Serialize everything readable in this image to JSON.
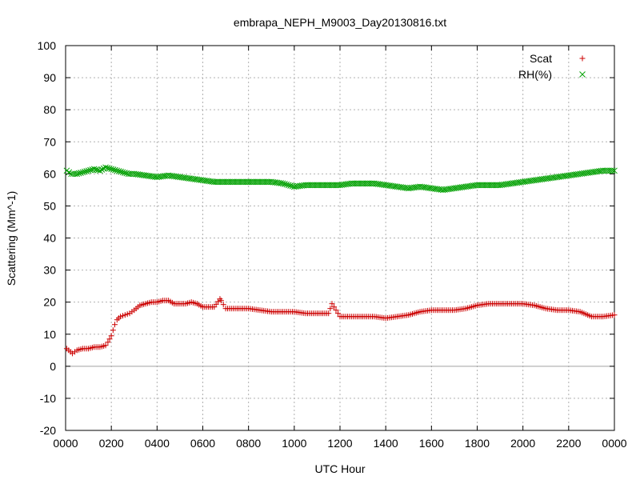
{
  "chart_data": {
    "type": "scatter",
    "title": "embrapa_NEPH_M9003_Day20130816.txt",
    "xlabel": "UTC Hour",
    "ylabel": "Scattering (Mm^-1)",
    "xlim": [
      0,
      24
    ],
    "ylim": [
      -20,
      100
    ],
    "grid": true,
    "legend_position": "top-right",
    "x_ticks": [
      {
        "value": 0,
        "label": "0000"
      },
      {
        "value": 2,
        "label": "0200"
      },
      {
        "value": 4,
        "label": "0400"
      },
      {
        "value": 6,
        "label": "0600"
      },
      {
        "value": 8,
        "label": "0800"
      },
      {
        "value": 10,
        "label": "1000"
      },
      {
        "value": 12,
        "label": "1200"
      },
      {
        "value": 14,
        "label": "1400"
      },
      {
        "value": 16,
        "label": "1600"
      },
      {
        "value": 18,
        "label": "1800"
      },
      {
        "value": 20,
        "label": "2000"
      },
      {
        "value": 22,
        "label": "2200"
      },
      {
        "value": 24,
        "label": "0000"
      }
    ],
    "y_ticks": [
      -20,
      -10,
      0,
      10,
      20,
      30,
      40,
      50,
      60,
      70,
      80,
      90,
      100
    ],
    "series": [
      {
        "name": "Scat",
        "marker": "plus",
        "color": "#cc0000",
        "x": [
          0.05,
          0.3,
          0.5,
          0.75,
          1.0,
          1.25,
          1.5,
          1.75,
          1.85,
          2.0,
          2.15,
          2.25,
          2.4,
          2.6,
          2.8,
          3.0,
          3.25,
          3.5,
          3.75,
          4.0,
          4.25,
          4.5,
          4.75,
          5.0,
          5.25,
          5.5,
          5.75,
          6.0,
          6.25,
          6.5,
          6.75,
          6.8,
          7.0,
          7.5,
          8.0,
          8.5,
          9.0,
          9.5,
          10.0,
          10.5,
          11.0,
          11.5,
          11.65,
          12.0,
          12.5,
          13.0,
          13.5,
          14.0,
          14.5,
          15.0,
          15.5,
          16.0,
          16.5,
          17.0,
          17.5,
          18.0,
          18.5,
          19.0,
          19.5,
          20.0,
          20.5,
          21.0,
          21.5,
          22.0,
          22.5,
          23.0,
          23.5,
          24.0
        ],
        "y": [
          5.5,
          4.0,
          5.0,
          5.5,
          5.5,
          6.0,
          6.0,
          6.5,
          7.5,
          9.5,
          13.0,
          14.5,
          15.5,
          16.0,
          16.5,
          17.5,
          19.0,
          19.5,
          20.0,
          20.0,
          20.5,
          20.5,
          19.5,
          19.5,
          19.5,
          20.0,
          19.5,
          18.5,
          18.5,
          18.5,
          21.0,
          20.5,
          18.0,
          18.0,
          18.0,
          17.5,
          17.0,
          17.0,
          17.0,
          16.5,
          16.5,
          16.5,
          19.5,
          15.5,
          15.5,
          15.5,
          15.5,
          15.0,
          15.5,
          16.0,
          17.0,
          17.5,
          17.5,
          17.5,
          18.0,
          19.0,
          19.5,
          19.5,
          19.5,
          19.5,
          19.0,
          18.0,
          17.5,
          17.5,
          17.0,
          15.5,
          15.5,
          16.0
        ]
      },
      {
        "name": "RH(%)",
        "marker": "cross",
        "color": "#00a000",
        "x": [
          0.05,
          0.25,
          0.5,
          0.75,
          1.0,
          1.25,
          1.5,
          1.75,
          2.0,
          2.25,
          2.5,
          2.75,
          3.0,
          3.5,
          4.0,
          4.5,
          5.0,
          5.5,
          6.0,
          6.5,
          7.0,
          7.5,
          8.0,
          8.5,
          9.0,
          9.5,
          10.0,
          10.5,
          11.0,
          11.5,
          12.0,
          12.5,
          13.0,
          13.5,
          14.0,
          14.5,
          15.0,
          15.5,
          16.0,
          16.5,
          17.0,
          17.5,
          18.0,
          18.5,
          19.0,
          19.5,
          20.0,
          20.5,
          21.0,
          21.5,
          22.0,
          22.5,
          23.0,
          23.5,
          24.0
        ],
        "y": [
          61.0,
          60.0,
          60.0,
          60.5,
          61.0,
          61.5,
          61.0,
          62.0,
          61.5,
          61.0,
          60.5,
          60.0,
          60.0,
          59.5,
          59.0,
          59.5,
          59.0,
          58.5,
          58.0,
          57.5,
          57.5,
          57.5,
          57.5,
          57.5,
          57.5,
          57.0,
          56.0,
          56.5,
          56.5,
          56.5,
          56.5,
          57.0,
          57.0,
          57.0,
          56.5,
          56.0,
          55.5,
          56.0,
          55.5,
          55.0,
          55.5,
          56.0,
          56.5,
          56.5,
          56.5,
          57.0,
          57.5,
          58.0,
          58.5,
          59.0,
          59.5,
          60.0,
          60.5,
          61.0,
          61.0
        ]
      }
    ]
  }
}
